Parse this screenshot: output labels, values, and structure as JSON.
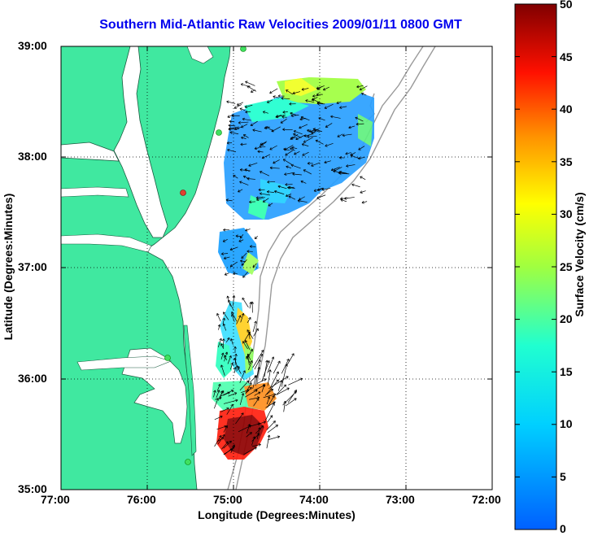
{
  "title": "Southern Mid-Atlantic Raw Velocities 2009/01/11 0800 GMT",
  "xlabel": "Longitude (Degrees:Minutes)",
  "ylabel": "Latitude (Degrees:Minutes)",
  "colorbar_label": "Surface Velocity (cm/s)",
  "colors": {
    "land": "#40e8a0",
    "water": "#ffffff",
    "axis": "#000000",
    "title": "#0000ee"
  },
  "chart_data": {
    "type": "heatmap",
    "x_ticks": [
      "77:00",
      "76:00",
      "75:00",
      "74:00",
      "73:00",
      "72:00"
    ],
    "y_ticks": [
      "39:00",
      "38:00",
      "37:00",
      "36:00",
      "35:00"
    ],
    "xlim": [
      -77,
      -72
    ],
    "ylim": [
      35,
      39
    ],
    "grid": true,
    "colorbar": {
      "min": 0,
      "max": 50,
      "ticks": [
        "0",
        "5",
        "10",
        "15",
        "20",
        "25",
        "30",
        "35",
        "40",
        "45",
        "50"
      ]
    }
  }
}
